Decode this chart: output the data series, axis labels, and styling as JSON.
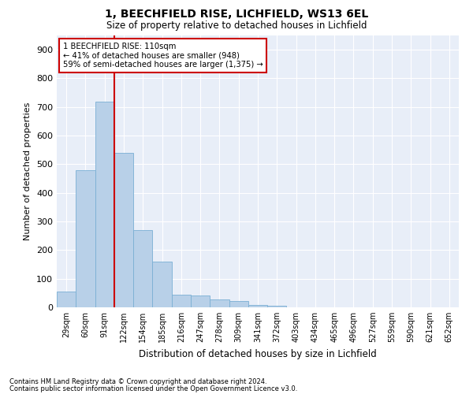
{
  "title1": "1, BEECHFIELD RISE, LICHFIELD, WS13 6EL",
  "title2": "Size of property relative to detached houses in Lichfield",
  "xlabel": "Distribution of detached houses by size in Lichfield",
  "ylabel": "Number of detached properties",
  "annotation_line1": "1 BEECHFIELD RISE: 110sqm",
  "annotation_line2": "← 41% of detached houses are smaller (948)",
  "annotation_line3": "59% of semi-detached houses are larger (1,375) →",
  "footnote1": "Contains HM Land Registry data © Crown copyright and database right 2024.",
  "footnote2": "Contains public sector information licensed under the Open Government Licence v3.0.",
  "bar_color": "#b8d0e8",
  "bar_edge_color": "#7aafd4",
  "vline_color": "#cc0000",
  "background_color": "#ffffff",
  "plot_bg_color": "#e8eef8",
  "annotation_box_color": "#ffffff",
  "annotation_box_edge": "#cc0000",
  "bin_labels": [
    "29sqm",
    "60sqm",
    "91sqm",
    "122sqm",
    "154sqm",
    "185sqm",
    "216sqm",
    "247sqm",
    "278sqm",
    "309sqm",
    "341sqm",
    "372sqm",
    "403sqm",
    "434sqm",
    "465sqm",
    "496sqm",
    "527sqm",
    "559sqm",
    "590sqm",
    "621sqm",
    "652sqm"
  ],
  "bar_values": [
    55,
    480,
    718,
    540,
    270,
    160,
    45,
    40,
    27,
    22,
    8,
    5,
    0,
    0,
    0,
    0,
    0,
    0,
    0,
    0,
    0
  ],
  "vline_x": 2.5,
  "ylim": [
    0,
    950
  ],
  "yticks": [
    0,
    100,
    200,
    300,
    400,
    500,
    600,
    700,
    800,
    900
  ]
}
